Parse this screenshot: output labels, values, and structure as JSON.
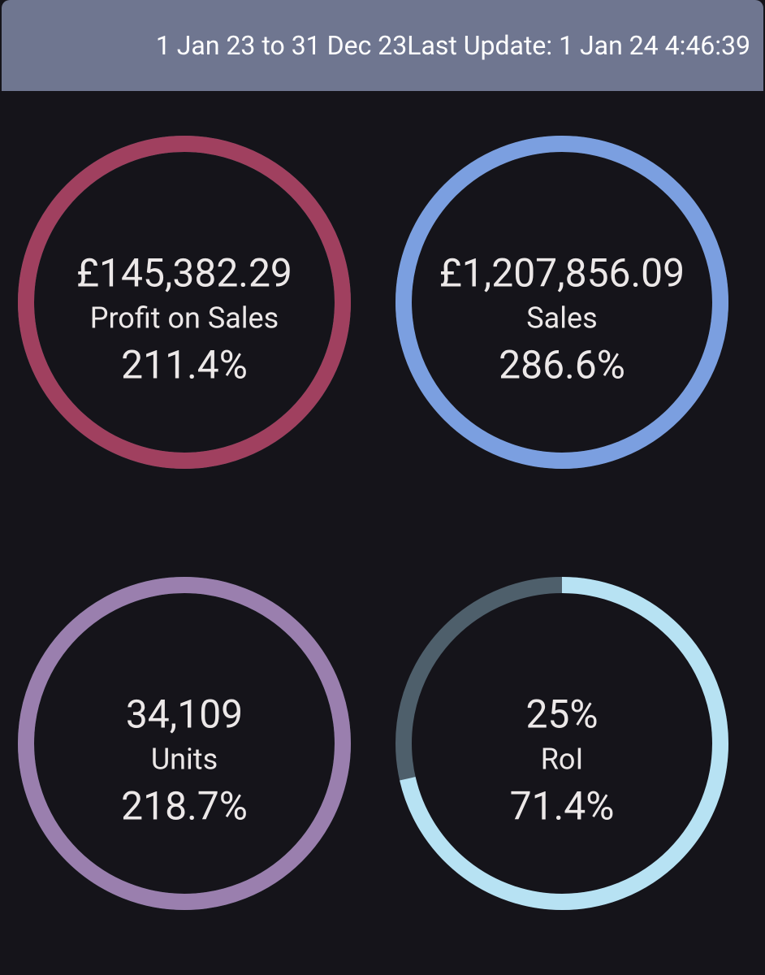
{
  "header": {
    "date_range": "1 Jan 23 to 31 Dec 23",
    "last_update": "Last Update: 1 Jan 24 4:46:39"
  },
  "gauges": [
    {
      "value": "£145,382.29",
      "label": "Profit on Sales",
      "percent": 211.4,
      "percent_label": "211.4%",
      "color": "#a0405f"
    },
    {
      "value": "£1,207,856.09",
      "label": "Sales",
      "percent": 286.6,
      "percent_label": "286.6%",
      "color": "#7b9fe0"
    },
    {
      "value": "34,109",
      "label": "Units",
      "percent": 218.7,
      "percent_label": "218.7%",
      "color": "#9a7fae"
    },
    {
      "value": "25%",
      "label": "RoI",
      "percent": 71.4,
      "percent_label": "71.4%",
      "color": "#b7e2f3"
    }
  ]
}
